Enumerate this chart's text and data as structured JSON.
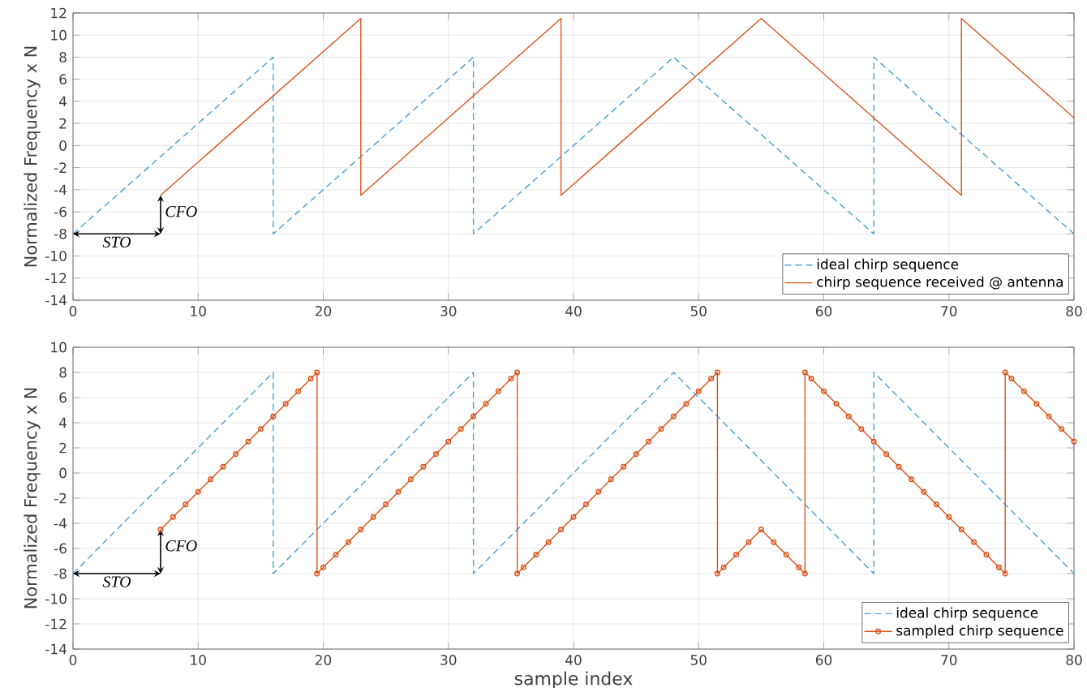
{
  "chart_data": [
    {
      "type": "line",
      "ylabel": "Normalized Frequency x N",
      "xlim": [
        0,
        80
      ],
      "ylim": [
        -14,
        12
      ],
      "xticks": [
        0,
        10,
        20,
        30,
        40,
        50,
        60,
        70,
        80
      ],
      "yticks": [
        -14,
        -12,
        -10,
        -8,
        -6,
        -4,
        -2,
        0,
        2,
        4,
        6,
        8,
        10,
        12
      ],
      "grid": true,
      "legend": "bottom right",
      "series": [
        {
          "name": "ideal chirp sequence",
          "color": "#4c9fd6",
          "line_style": "dashed",
          "marker": "none",
          "x": [
            0,
            16,
            16,
            32,
            32,
            48,
            64,
            64,
            80
          ],
          "values": [
            -8,
            8,
            -8,
            8,
            -8,
            8,
            -8,
            8,
            -8
          ]
        },
        {
          "name": "chirp sequence received @ antenna",
          "color": "#d95319",
          "line_style": "solid",
          "marker": "none",
          "x": [
            7,
            23,
            23,
            39,
            39,
            55,
            71,
            71,
            80
          ],
          "values": [
            -4.5,
            11.5,
            -4.5,
            11.5,
            -4.5,
            11.5,
            -4.5,
            11.5,
            2.5
          ]
        }
      ],
      "annotations": [
        "STO",
        {
          "text": "CFO",
          "x": 7,
          "y": -4.5
        }
      ]
    },
    {
      "type": "line",
      "xlabel": "sample index",
      "ylabel": "Normalized Frequency x N",
      "xlim": [
        0,
        80
      ],
      "ylim": [
        -14,
        10
      ],
      "xticks": [
        0,
        10,
        20,
        30,
        40,
        50,
        60,
        70,
        80
      ],
      "yticks": [
        -14,
        -12,
        -10,
        -8,
        -6,
        -4,
        -2,
        0,
        2,
        4,
        6,
        8,
        10
      ],
      "grid": true,
      "legend": "bottom right",
      "series": [
        {
          "name": "ideal chirp sequence",
          "color": "#4c9fd6",
          "line_style": "dashed",
          "marker": "none",
          "x": [
            0,
            16,
            16,
            32,
            32,
            48,
            64,
            64,
            80
          ],
          "values": [
            -8,
            8,
            -8,
            8,
            -8,
            8,
            -8,
            8,
            -8
          ]
        },
        {
          "name": "sampled chirp sequence",
          "color": "#d95319",
          "line_style": "solid",
          "marker": "circle",
          "x": [
            7,
            8,
            9,
            10,
            11,
            12,
            13,
            14,
            15,
            16,
            17,
            18,
            19,
            19.5,
            19.5,
            20,
            21,
            22,
            23,
            24,
            25,
            26,
            27,
            28,
            29,
            30,
            31,
            32,
            33,
            34,
            35,
            35.5,
            35.5,
            36,
            37,
            38,
            39,
            40,
            41,
            42,
            43,
            44,
            45,
            46,
            47,
            48,
            49,
            50,
            51,
            51.5,
            51.5,
            52,
            53,
            54,
            55,
            56,
            57,
            58,
            58.5,
            58.5,
            59,
            60,
            61,
            62,
            63,
            64,
            65,
            66,
            67,
            68,
            69,
            70,
            71,
            72,
            73,
            74,
            74.5,
            74.5,
            75,
            76,
            77,
            78,
            79,
            80
          ],
          "values": [
            -4.5,
            -3.5,
            -2.5,
            -1.5,
            -0.5,
            0.5,
            1.5,
            2.5,
            3.5,
            4.5,
            5.5,
            6.5,
            7.5,
            8,
            -8,
            -7.5,
            -6.5,
            -5.5,
            -4.5,
            -3.5,
            -2.5,
            -1.5,
            -0.5,
            0.5,
            1.5,
            2.5,
            3.5,
            4.5,
            5.5,
            6.5,
            7.5,
            8,
            -8,
            -7.5,
            -6.5,
            -5.5,
            -4.5,
            -3.5,
            -2.5,
            -1.5,
            -0.5,
            0.5,
            1.5,
            2.5,
            3.5,
            4.5,
            5.5,
            6.5,
            7.5,
            8,
            -8,
            -7.5,
            -6.5,
            -5.5,
            -4.5,
            -5.5,
            -6.5,
            -7.5,
            -8,
            8,
            7.5,
            6.5,
            5.5,
            4.5,
            3.5,
            2.5,
            1.5,
            0.5,
            -0.5,
            -1.5,
            -2.5,
            -3.5,
            -4.5,
            -5.5,
            -6.5,
            -7.5,
            -8,
            8,
            7.5,
            6.5,
            5.5,
            4.5,
            3.5,
            2.5
          ]
        }
      ],
      "annotations": [
        "STO",
        {
          "text": "CFO",
          "x": 7,
          "y": -4.5
        }
      ]
    }
  ]
}
